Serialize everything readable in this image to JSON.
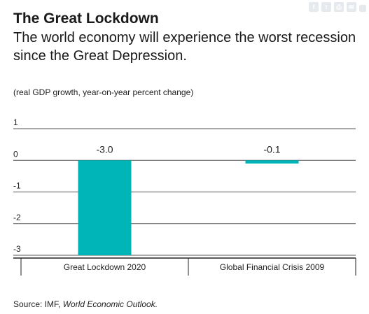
{
  "title": "The Great Lockdown",
  "subtitle": "The world economy will experience the worst recession since the Great Depression.",
  "note": "(real GDP growth, year-on-year percent change)",
  "source_prefix": "Source: IMF, ",
  "source_italic": "World Economic Outlook.",
  "share_icons": [
    "facebook-icon",
    "twitter-icon",
    "print-icon",
    "email-icon",
    "embed-icon"
  ],
  "chart_data": {
    "type": "bar",
    "categories": [
      "Great Lockdown 2020",
      "Global Financial Crisis 2009"
    ],
    "values": [
      -3.0,
      -0.1
    ],
    "value_labels": [
      "-3.0",
      "-0.1"
    ],
    "yticks": [
      "1",
      "0",
      "-1",
      "-2",
      "-3"
    ],
    "ylim": [
      -3,
      1
    ],
    "bar_color": "#00b5b8",
    "grid": true
  }
}
